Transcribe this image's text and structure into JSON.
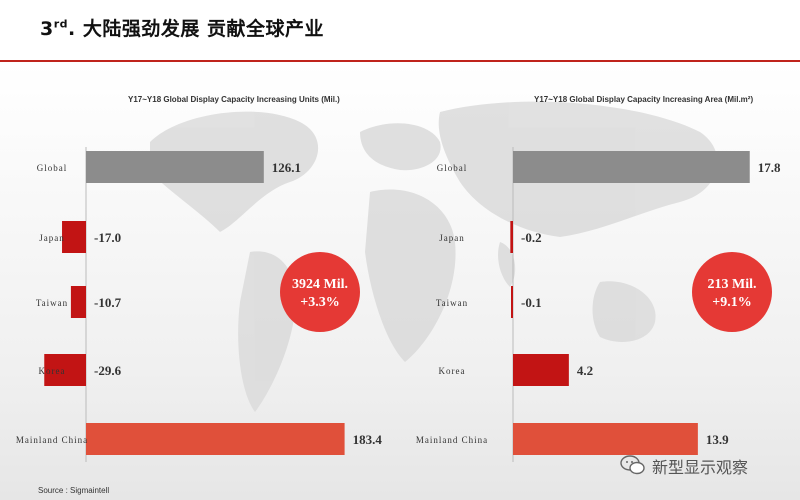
{
  "header": {
    "prefix": "3",
    "ordinal": "rd",
    "rest": ". 大陆强劲发展 贡献全球产业"
  },
  "source_text": "Source : Sigmaintell",
  "watermark": {
    "text": "新型显示观察",
    "icon": "wechat-icon"
  },
  "colors": {
    "accent": "#c0241c",
    "global_bar": "#8c8c8c",
    "negative_bar": "#c21414",
    "positive_bar": "#e0503a",
    "badge": "#e53935"
  },
  "chart_data": [
    {
      "type": "bar",
      "orientation": "horizontal",
      "title": "Y17~Y18 Global Display Capacity Increasing Units (Mil.)",
      "categories": [
        "Global",
        "Japan",
        "Taiwan",
        "Korea",
        "Mainland China"
      ],
      "values": [
        126.1,
        -17.0,
        -10.7,
        -29.6,
        183.4
      ],
      "value_labels": [
        "126.1",
        "-17.0",
        "-10.7",
        "-29.6",
        "183.4"
      ],
      "badge": {
        "line1": "3924 Mil.",
        "line2": "+3.3%"
      }
    },
    {
      "type": "bar",
      "orientation": "horizontal",
      "title": "Y17~Y18 Global Display Capacity Increasing Area (Mil.m²)",
      "categories": [
        "Global",
        "Japan",
        "Taiwan",
        "Korea",
        "Mainland China"
      ],
      "values": [
        17.8,
        -0.2,
        -0.1,
        4.2,
        13.9
      ],
      "value_labels": [
        "17.8",
        "-0.2",
        "-0.1",
        "4.2",
        "13.9"
      ],
      "badge": {
        "line1": "213 Mil.",
        "line2": "+9.1%"
      }
    }
  ]
}
